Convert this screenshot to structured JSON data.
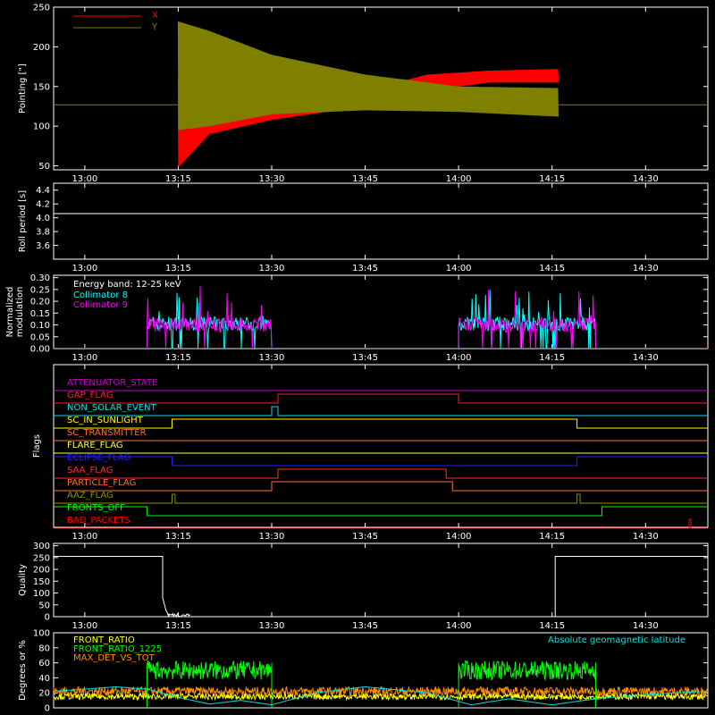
{
  "colors": {
    "background": "#000000",
    "axes": "#ffffff",
    "x": "#ff0000",
    "y": "#808000",
    "c8": "#00ffff",
    "c9": "#ff00ff",
    "front_ratio": "#ffff00",
    "front_ratio_1225": "#00ff00",
    "max_det": "#ff8c00",
    "geomag": "#00e0e0"
  },
  "chart_data": [
    {
      "type": "line",
      "id": "pointing",
      "ylabel": "Pointing [\"]",
      "ylim": [
        45,
        250
      ],
      "yticks": [
        50,
        100,
        150,
        200,
        250
      ],
      "xlim": [
        "12:55",
        "14:40"
      ],
      "xticks": [
        "13:00",
        "13:15",
        "13:30",
        "13:45",
        "14:00",
        "14:15",
        "14:30"
      ],
      "legend": "top-left",
      "series": [
        {
          "name": "X",
          "color": "#ff0000",
          "oscillation_start": "13:15",
          "oscillation_end": "14:16",
          "upper_envelope": [
            {
              "t": "13:15",
              "v": 160
            },
            {
              "t": "13:20",
              "v": 145
            },
            {
              "t": "13:30",
              "v": 140
            },
            {
              "t": "13:45",
              "v": 145
            },
            {
              "t": "13:55",
              "v": 165
            },
            {
              "t": "14:05",
              "v": 170
            },
            {
              "t": "14:16",
              "v": 172
            }
          ],
          "lower_envelope": [
            {
              "t": "13:15",
              "v": 48
            },
            {
              "t": "13:20",
              "v": 90
            },
            {
              "t": "13:30",
              "v": 108
            },
            {
              "t": "13:45",
              "v": 125
            },
            {
              "t": "13:55",
              "v": 145
            },
            {
              "t": "14:05",
              "v": 155
            },
            {
              "t": "14:16",
              "v": 155
            }
          ],
          "baseline": 127
        },
        {
          "name": "Y",
          "color": "#808000",
          "oscillation_start": "13:15",
          "oscillation_end": "14:16",
          "upper_envelope": [
            {
              "t": "13:15",
              "v": 232
            },
            {
              "t": "13:20",
              "v": 220
            },
            {
              "t": "13:30",
              "v": 190
            },
            {
              "t": "13:45",
              "v": 165
            },
            {
              "t": "14:00",
              "v": 150
            },
            {
              "t": "14:16",
              "v": 148
            }
          ],
          "lower_envelope": [
            {
              "t": "13:15",
              "v": 95
            },
            {
              "t": "13:20",
              "v": 100
            },
            {
              "t": "13:30",
              "v": 115
            },
            {
              "t": "13:45",
              "v": 120
            },
            {
              "t": "14:00",
              "v": 118
            },
            {
              "t": "14:16",
              "v": 112
            }
          ],
          "baseline": 127
        }
      ]
    },
    {
      "type": "line",
      "id": "roll",
      "ylabel": "Roll period [s]",
      "ylim": [
        3.4,
        4.5
      ],
      "yticks": [
        "3.6",
        "3.8",
        "4.0",
        "4.2",
        "4.4"
      ],
      "xlim": [
        "12:55",
        "14:40"
      ],
      "xticks": [
        "13:00",
        "13:15",
        "13:30",
        "13:45",
        "14:00",
        "14:15",
        "14:30"
      ],
      "series": [
        {
          "name": "",
          "color": "#ffffff",
          "value": 4.06
        }
      ]
    },
    {
      "type": "line",
      "id": "modulation",
      "ylabel": "Normalized modulation",
      "ylim": [
        0,
        0.31
      ],
      "yticks": [
        "0.00",
        "0.05",
        "0.10",
        "0.15",
        "0.20",
        "0.25",
        "0.30"
      ],
      "xlim": [
        "12:55",
        "14:40"
      ],
      "xticks": [
        "13:00",
        "13:15",
        "13:30",
        "13:45",
        "14:00",
        "14:15",
        "14:30"
      ],
      "legend_title": "Energy band: 12-25 keV",
      "legend": "top-left",
      "segments": [
        [
          "13:10",
          "13:30"
        ],
        [
          "14:00",
          "14:22"
        ]
      ],
      "series": [
        {
          "name": "Collimator 8",
          "color": "#00ffff",
          "level": 0.105,
          "peak": 0.25
        },
        {
          "name": "Collimator 9",
          "color": "#ff00ff",
          "level": 0.1,
          "peak": 0.27
        }
      ]
    },
    {
      "type": "line",
      "id": "flags",
      "ylabel": "Flags",
      "xlim": [
        "12:55",
        "14:40"
      ],
      "xticks": [
        "13:00",
        "13:15",
        "13:30",
        "13:45",
        "14:00",
        "14:15",
        "14:30"
      ],
      "flags": [
        {
          "name": "ATTENUATOR_STATE",
          "color": "#cc00cc",
          "on": []
        },
        {
          "name": "GAP_FLAG",
          "color": "#ff2020",
          "on": [
            [
              "13:31",
              "14:00"
            ]
          ]
        },
        {
          "name": "NON_SOLAR_EVENT",
          "color": "#00e0e0",
          "on": [
            [
              "13:30",
              "13:31"
            ]
          ]
        },
        {
          "name": "SC_IN_SUNLIGHT",
          "color": "#ffff00",
          "on": [
            [
              "13:14",
              "14:19"
            ]
          ]
        },
        {
          "name": "SC_TRANSMITTER",
          "color": "#ff7030",
          "on": []
        },
        {
          "name": "FLARE_FLAG",
          "color": "#ffff40",
          "on": []
        },
        {
          "name": "ECLIPSE_FLAG",
          "color": "#2020ff",
          "on": [
            [
              "12:55",
              "13:14"
            ],
            [
              "14:19",
              "14:40"
            ]
          ]
        },
        {
          "name": "SAA_FLAG",
          "color": "#ff3030",
          "on": [
            [
              "13:31",
              "13:58"
            ]
          ]
        },
        {
          "name": "PARTICLE_FLAG",
          "color": "#ff7030",
          "on": [
            [
              "13:30",
              "13:59"
            ]
          ]
        },
        {
          "name": "AAZ_FLAG",
          "color": "#909000",
          "on": [
            [
              "13:14",
              "13:14.5"
            ],
            [
              "14:19",
              "14:19.5"
            ]
          ]
        },
        {
          "name": "FRONTS_OFF",
          "color": "#00ff00",
          "on": [
            [
              "12:55",
              "13:10"
            ],
            [
              "14:23",
              "14:40"
            ]
          ]
        },
        {
          "name": "BAD_PACKETS",
          "color": "#ff0000",
          "on": [
            [
              "14:37",
              "14:37.3"
            ]
          ]
        }
      ]
    },
    {
      "type": "line",
      "id": "quality",
      "ylabel": "Quality",
      "ylim": [
        0,
        310
      ],
      "yticks": [
        0,
        50,
        100,
        150,
        200,
        250,
        300
      ],
      "xlim": [
        "12:55",
        "14:40"
      ],
      "xticks": [
        "13:00",
        "13:15",
        "13:30",
        "13:45",
        "14:00",
        "14:15",
        "14:30"
      ],
      "series": [
        {
          "name": "",
          "color": "#ffffff",
          "points": [
            {
              "t": "12:55",
              "v": 255
            },
            {
              "t": "13:12.5",
              "v": 255
            },
            {
              "t": "13:12.5",
              "v": 80
            },
            {
              "t": "13:13",
              "v": 30
            },
            {
              "t": "13:13.5",
              "v": 0
            },
            {
              "t": "14:15.5",
              "v": 0
            },
            {
              "t": "14:15.5",
              "v": 255
            },
            {
              "t": "14:40",
              "v": 255
            }
          ]
        }
      ]
    },
    {
      "type": "line",
      "id": "degrees",
      "ylabel": "Degrees or %",
      "ylim": [
        0,
        100
      ],
      "yticks": [
        0,
        20,
        40,
        60,
        80,
        100
      ],
      "xlim": [
        "12:55",
        "14:40"
      ],
      "legend": "top-left",
      "series": [
        {
          "name": "FRONT_RATIO",
          "color": "#ffff00",
          "level": 15
        },
        {
          "name": "FRONT_RATIO_1225",
          "color": "#00ff00",
          "level": 50,
          "segments": [
            [
              "13:10",
              "13:30"
            ],
            [
              "14:00",
              "14:22"
            ]
          ]
        },
        {
          "name": "MAX_DET_VS_TOT",
          "color": "#ff8c00",
          "level": 22
        },
        {
          "name": "Absolute geomagnetic latitude",
          "color": "#00e0e0",
          "points": [
            {
              "t": "12:55",
              "v": 22
            },
            {
              "t": "13:05",
              "v": 28
            },
            {
              "t": "13:10",
              "v": 25
            },
            {
              "t": "13:15",
              "v": 14
            },
            {
              "t": "13:20",
              "v": 5
            },
            {
              "t": "13:25",
              "v": 10
            },
            {
              "t": "13:30",
              "v": 4
            },
            {
              "t": "13:37",
              "v": 20
            },
            {
              "t": "13:45",
              "v": 28
            },
            {
              "t": "13:55",
              "v": 20
            },
            {
              "t": "14:02",
              "v": 4
            },
            {
              "t": "14:08",
              "v": 12
            },
            {
              "t": "14:15",
              "v": 4
            },
            {
              "t": "14:22",
              "v": 12
            },
            {
              "t": "14:30",
              "v": 18
            },
            {
              "t": "14:40",
              "v": 22
            }
          ]
        }
      ]
    }
  ]
}
